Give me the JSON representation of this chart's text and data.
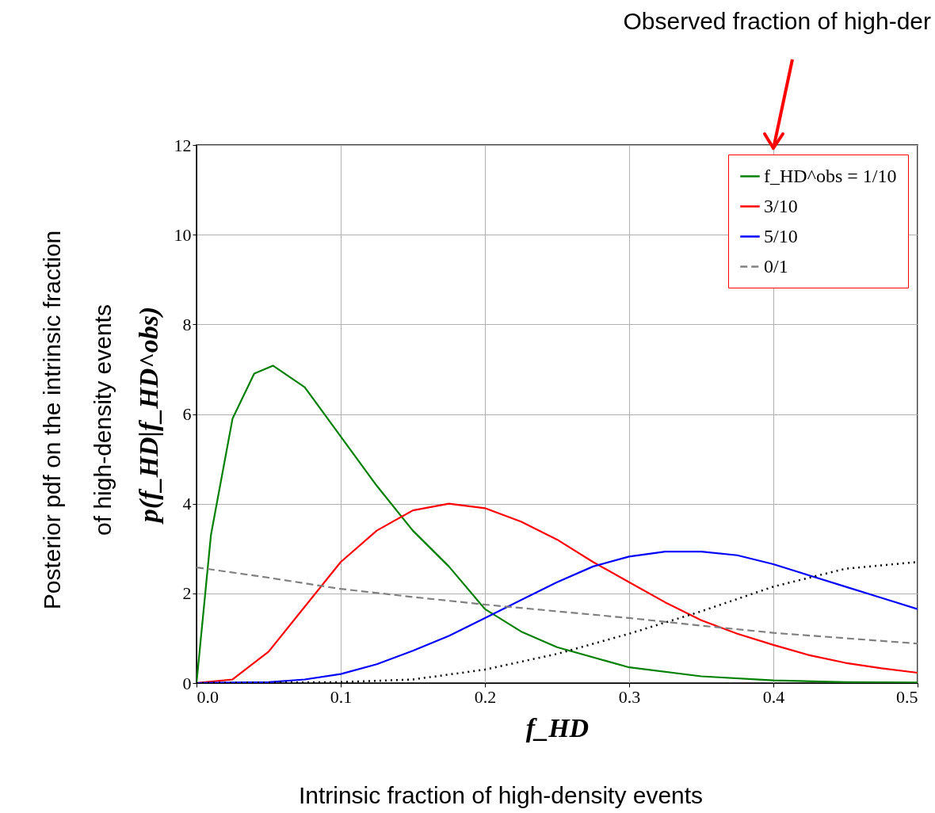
{
  "chart_data": {
    "type": "line",
    "xlabel": "f_HD",
    "ylabel": "p(f_HD|f_HD^obs)",
    "annotations": [
      "Observed fraction of high-der",
      "Posterior pdf on the intrinsic fraction\nof high-density events",
      "Intrinsic fraction of high-density events"
    ],
    "x": [
      0,
      0.025,
      0.05,
      0.075,
      0.1,
      0.125,
      0.15,
      0.175,
      0.2,
      0.225,
      0.25,
      0.275,
      0.3,
      0.325,
      0.35,
      0.375,
      0.4,
      0.425,
      0.45,
      0.475,
      0.5
    ],
    "series": [
      {
        "name": "f_HD^obs = 1/10",
        "color": "#008000",
        "line_style": "solid",
        "x": [
          0,
          0.01,
          0.025,
          0.04,
          0.053,
          0.075,
          0.1,
          0.125,
          0.15,
          0.175,
          0.2,
          0.225,
          0.25,
          0.3,
          0.35,
          0.4,
          0.45,
          0.5
        ],
        "values": [
          0,
          3.3,
          5.9,
          6.9,
          7.08,
          6.6,
          5.5,
          4.4,
          3.4,
          2.6,
          1.65,
          1.15,
          0.8,
          0.35,
          0.15,
          0.06,
          0.02,
          0.01
        ]
      },
      {
        "name": "3/10",
        "color": "#ff0000",
        "line_style": "solid",
        "values": [
          0,
          0.08,
          0.7,
          1.7,
          2.7,
          3.4,
          3.85,
          4.0,
          3.9,
          3.6,
          3.2,
          2.7,
          2.25,
          1.8,
          1.4,
          1.1,
          0.85,
          0.62,
          0.45,
          0.33,
          0.23
        ]
      },
      {
        "name": "5/10",
        "color": "#0000ff",
        "line_style": "solid",
        "values": [
          0,
          0.01,
          0.02,
          0.08,
          0.2,
          0.42,
          0.72,
          1.05,
          1.45,
          1.85,
          2.25,
          2.6,
          2.82,
          2.93,
          2.93,
          2.85,
          2.65,
          2.4,
          2.15,
          1.9,
          1.65
        ]
      },
      {
        "name": "0/1",
        "color": "#808080",
        "line_style": "dashed",
        "x": [
          0,
          0.05,
          0.1,
          0.15,
          0.2,
          0.25,
          0.3,
          0.35,
          0.4,
          0.45,
          0.5
        ],
        "values": [
          2.58,
          2.35,
          2.1,
          1.92,
          1.75,
          1.6,
          1.45,
          1.28,
          1.12,
          1.0,
          0.88
        ]
      },
      {
        "color": "#000000",
        "line_style": "dotted",
        "x": [
          0,
          0.1,
          0.15,
          0.2,
          0.25,
          0.3,
          0.35,
          0.4,
          0.45,
          0.5
        ],
        "values": [
          0,
          0.02,
          0.08,
          0.3,
          0.65,
          1.1,
          1.6,
          2.15,
          2.55,
          2.7
        ]
      }
    ],
    "xlim": [
      0,
      0.5
    ],
    "xticks": [
      {
        "value": 0,
        "label": "0.0"
      },
      0.1,
      0.2,
      0.3,
      0.4,
      0.5
    ],
    "ylim": [
      0,
      12
    ],
    "yticks": [
      0,
      2,
      4,
      6,
      8,
      10,
      12
    ],
    "grid": true,
    "legend": "top right"
  }
}
